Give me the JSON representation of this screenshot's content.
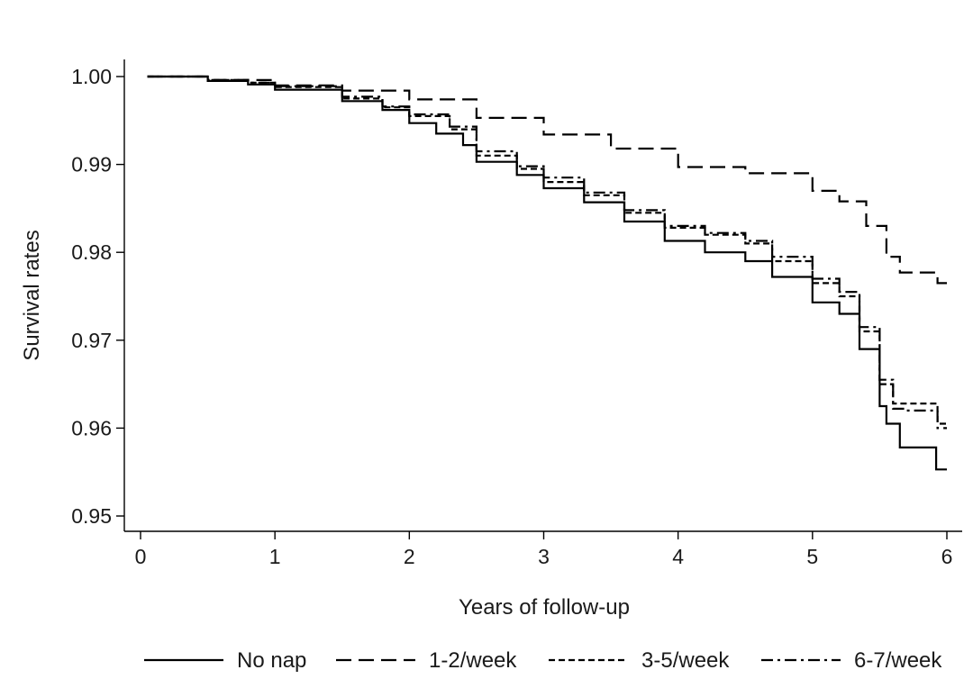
{
  "chart_data": {
    "type": "line",
    "xlabel": "Years of follow-up",
    "ylabel": "Survival rates",
    "xlim": [
      0,
      6
    ],
    "ylim": [
      0.95,
      1.0
    ],
    "xticks": [
      "0",
      "1",
      "2",
      "3",
      "4",
      "5",
      "6"
    ],
    "yticks": [
      "0.95",
      "0.96",
      "0.97",
      "0.98",
      "0.99",
      "1.00"
    ],
    "legend_position": "bottom",
    "series": [
      {
        "name": "No nap",
        "dash": "solid",
        "color": "#000000",
        "points": [
          [
            0.05,
            1.0
          ],
          [
            0.5,
            0.9995
          ],
          [
            0.8,
            0.9991
          ],
          [
            1.0,
            0.9985
          ],
          [
            1.5,
            0.9972
          ],
          [
            1.8,
            0.9962
          ],
          [
            2.0,
            0.9947
          ],
          [
            2.2,
            0.9935
          ],
          [
            2.4,
            0.9922
          ],
          [
            2.5,
            0.9903
          ],
          [
            2.8,
            0.9888
          ],
          [
            3.0,
            0.9873
          ],
          [
            3.3,
            0.9857
          ],
          [
            3.6,
            0.9835
          ],
          [
            3.9,
            0.9813
          ],
          [
            4.2,
            0.98
          ],
          [
            4.5,
            0.979
          ],
          [
            4.7,
            0.9772
          ],
          [
            5.0,
            0.9743
          ],
          [
            5.2,
            0.973
          ],
          [
            5.35,
            0.969
          ],
          [
            5.5,
            0.9625
          ],
          [
            5.55,
            0.9605
          ],
          [
            5.65,
            0.9578
          ],
          [
            5.9,
            0.9578
          ],
          [
            5.92,
            0.9553
          ],
          [
            6.0,
            0.9553
          ]
        ]
      },
      {
        "name": "1-2/week",
        "dash": "dashed",
        "color": "#000000",
        "points": [
          [
            0.05,
            1.0
          ],
          [
            0.5,
            0.9996
          ],
          [
            1.0,
            0.999
          ],
          [
            1.5,
            0.9984
          ],
          [
            2.0,
            0.9974
          ],
          [
            2.5,
            0.9953
          ],
          [
            3.0,
            0.9934
          ],
          [
            3.5,
            0.9918
          ],
          [
            4.0,
            0.9897
          ],
          [
            4.5,
            0.989
          ],
          [
            5.0,
            0.987
          ],
          [
            5.2,
            0.9858
          ],
          [
            5.4,
            0.983
          ],
          [
            5.55,
            0.9795
          ],
          [
            5.65,
            0.9777
          ],
          [
            5.9,
            0.9777
          ],
          [
            5.93,
            0.9765
          ],
          [
            6.0,
            0.9765
          ]
        ]
      },
      {
        "name": "3-5/week",
        "dash": "short-dash",
        "color": "#000000",
        "points": [
          [
            0.05,
            1.0
          ],
          [
            0.5,
            0.9996
          ],
          [
            0.8,
            0.9993
          ],
          [
            1.0,
            0.9988
          ],
          [
            1.5,
            0.9975
          ],
          [
            1.8,
            0.9965
          ],
          [
            2.0,
            0.9955
          ],
          [
            2.3,
            0.994
          ],
          [
            2.5,
            0.991
          ],
          [
            2.8,
            0.9895
          ],
          [
            3.0,
            0.988
          ],
          [
            3.3,
            0.9865
          ],
          [
            3.6,
            0.9845
          ],
          [
            3.9,
            0.9828
          ],
          [
            4.2,
            0.982
          ],
          [
            4.5,
            0.981
          ],
          [
            4.7,
            0.979
          ],
          [
            5.0,
            0.9765
          ],
          [
            5.2,
            0.975
          ],
          [
            5.35,
            0.971
          ],
          [
            5.5,
            0.965
          ],
          [
            5.6,
            0.9628
          ],
          [
            5.7,
            0.9628
          ],
          [
            5.9,
            0.9628
          ],
          [
            5.93,
            0.9605
          ],
          [
            6.0,
            0.9605
          ]
        ]
      },
      {
        "name": "6-7/week",
        "dash": "dash-dot",
        "color": "#000000",
        "points": [
          [
            0.05,
            1.0
          ],
          [
            0.5,
            0.9996
          ],
          [
            0.8,
            0.9993
          ],
          [
            1.0,
            0.9989
          ],
          [
            1.5,
            0.9977
          ],
          [
            1.8,
            0.9966
          ],
          [
            2.0,
            0.9957
          ],
          [
            2.3,
            0.9943
          ],
          [
            2.5,
            0.9915
          ],
          [
            2.8,
            0.9898
          ],
          [
            3.0,
            0.9885
          ],
          [
            3.3,
            0.9868
          ],
          [
            3.6,
            0.9848
          ],
          [
            3.9,
            0.983
          ],
          [
            4.2,
            0.9822
          ],
          [
            4.5,
            0.9813
          ],
          [
            4.7,
            0.9795
          ],
          [
            5.0,
            0.977
          ],
          [
            5.2,
            0.9755
          ],
          [
            5.35,
            0.9715
          ],
          [
            5.5,
            0.9655
          ],
          [
            5.6,
            0.9622
          ],
          [
            5.7,
            0.962
          ],
          [
            5.9,
            0.962
          ],
          [
            5.93,
            0.96
          ],
          [
            6.0,
            0.96
          ]
        ]
      }
    ]
  }
}
